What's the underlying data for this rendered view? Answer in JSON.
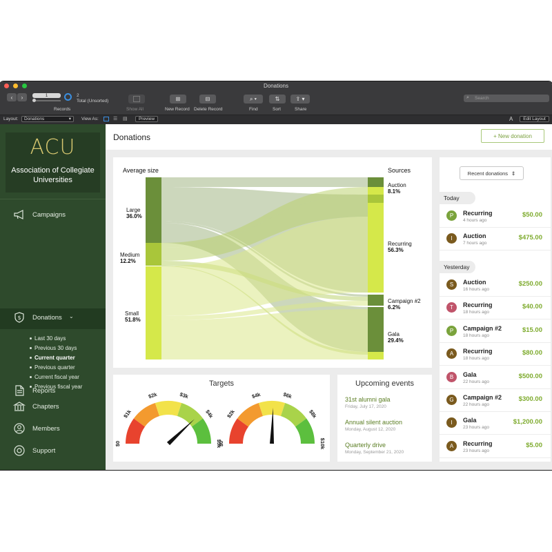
{
  "window": {
    "title": "Donations"
  },
  "toolbar": {
    "record_number": "1",
    "total_count": "2",
    "total_label": "Total (Unsorted)",
    "records_label": "Records",
    "show_all_label": "Show All",
    "new_record_label": "New Record",
    "delete_record_label": "Delete Record",
    "find_label": "Find",
    "sort_label": "Sort",
    "share_label": "Share",
    "search_placeholder": "Search"
  },
  "layout_bar": {
    "layout_label": "Layout:",
    "layout_value": "Donations",
    "view_as_label": "View As:",
    "preview_label": "Preview",
    "font_size_label": "A",
    "edit_layout_label": "Edit Layout"
  },
  "sidebar": {
    "logo_text": "ACU",
    "org_name_line1": "Association of Collegiate",
    "org_name_line2": "Universities",
    "items": [
      {
        "label": "Campaigns",
        "icon": "megaphone-icon"
      },
      {
        "label": "Donations",
        "icon": "dollar-shield-icon",
        "active": true
      },
      {
        "label": "Chapters",
        "icon": "building-icon"
      },
      {
        "label": "Members",
        "icon": "person-icon"
      },
      {
        "label": "Support",
        "icon": "lifebuoy-icon"
      },
      {
        "label": "Reports",
        "icon": "document-icon"
      }
    ],
    "subitems": [
      {
        "label": "Last 30 days"
      },
      {
        "label": "Previous 30 days"
      },
      {
        "label": "Current quarter",
        "current": true
      },
      {
        "label": "Previous quarter"
      },
      {
        "label": "Current fiscal year"
      },
      {
        "label": "Previous fiscal year"
      }
    ]
  },
  "main": {
    "title": "Donations",
    "new_donation_label": "+ New donation"
  },
  "sankey": {
    "left_title": "Average size",
    "right_title": "Sources",
    "sizes": [
      {
        "name": "Large",
        "pct": "36.0%"
      },
      {
        "name": "Medium",
        "pct": "12.2%"
      },
      {
        "name": "Small",
        "pct": "51.8%"
      }
    ],
    "sources": [
      {
        "name": "Auction",
        "pct": "8.1%"
      },
      {
        "name": "Recurring",
        "pct": "56.3%"
      },
      {
        "name": "Campaign #2",
        "pct": "6.2%"
      },
      {
        "name": "Gala",
        "pct": "29.4%"
      }
    ],
    "colors": {
      "large": "#6b8f3a",
      "medium": "#a9c63a",
      "small": "#d5e84a"
    }
  },
  "targets": {
    "title": "Targets",
    "gauges": [
      {
        "ticks": [
          "$0",
          "$1k",
          "$2k",
          "$3k",
          "$4k",
          "$5k"
        ],
        "max": 5000,
        "value": 3800
      },
      {
        "ticks": [
          "$0",
          "$2k",
          "$4k",
          "$6k",
          "$8k",
          "$10k"
        ],
        "max": 10000,
        "value": 5100
      }
    ]
  },
  "events": {
    "title": "Upcoming events",
    "items": [
      {
        "name": "31st alumni gala",
        "date": "Friday, July 17, 2020"
      },
      {
        "name": "Annual silent auction",
        "date": "Monday, August 12, 2020"
      },
      {
        "name": "Quarterly drive",
        "date": "Monday, September 21, 2020"
      }
    ]
  },
  "recent": {
    "button_label": "Recent donations",
    "today_label": "Today",
    "yesterday_label": "Yesterday",
    "today": [
      {
        "initial": "P",
        "color": "#7aa33c",
        "name": "Recurring",
        "time": "4 hours ago",
        "amount": "$50.00"
      },
      {
        "initial": "I",
        "color": "#7a5a1e",
        "name": "Auction",
        "time": "7 hours ago",
        "amount": "$475.00"
      }
    ],
    "yesterday": [
      {
        "initial": "S",
        "color": "#7a5a1e",
        "name": "Auction",
        "time": "16 hours ago",
        "amount": "$250.00"
      },
      {
        "initial": "T",
        "color": "#c0546a",
        "name": "Recurring",
        "time": "18 hours ago",
        "amount": "$40.00"
      },
      {
        "initial": "P",
        "color": "#7aa33c",
        "name": "Campaign #2",
        "time": "18 hours ago",
        "amount": "$15.00"
      },
      {
        "initial": "A",
        "color": "#7a5a1e",
        "name": "Recurring",
        "time": "18 hours ago",
        "amount": "$80.00"
      },
      {
        "initial": "B",
        "color": "#c0546a",
        "name": "Gala",
        "time": "22 hours ago",
        "amount": "$500.00"
      },
      {
        "initial": "G",
        "color": "#7a5a1e",
        "name": "Campaign #2",
        "time": "22 hours ago",
        "amount": "$300.00"
      },
      {
        "initial": "I",
        "color": "#7a5a1e",
        "name": "Gala",
        "time": "23 hours ago",
        "amount": "$1,200.00"
      },
      {
        "initial": "A",
        "color": "#7a5a1e",
        "name": "Recurring",
        "time": "23 hours ago",
        "amount": "$5.00"
      }
    ]
  }
}
